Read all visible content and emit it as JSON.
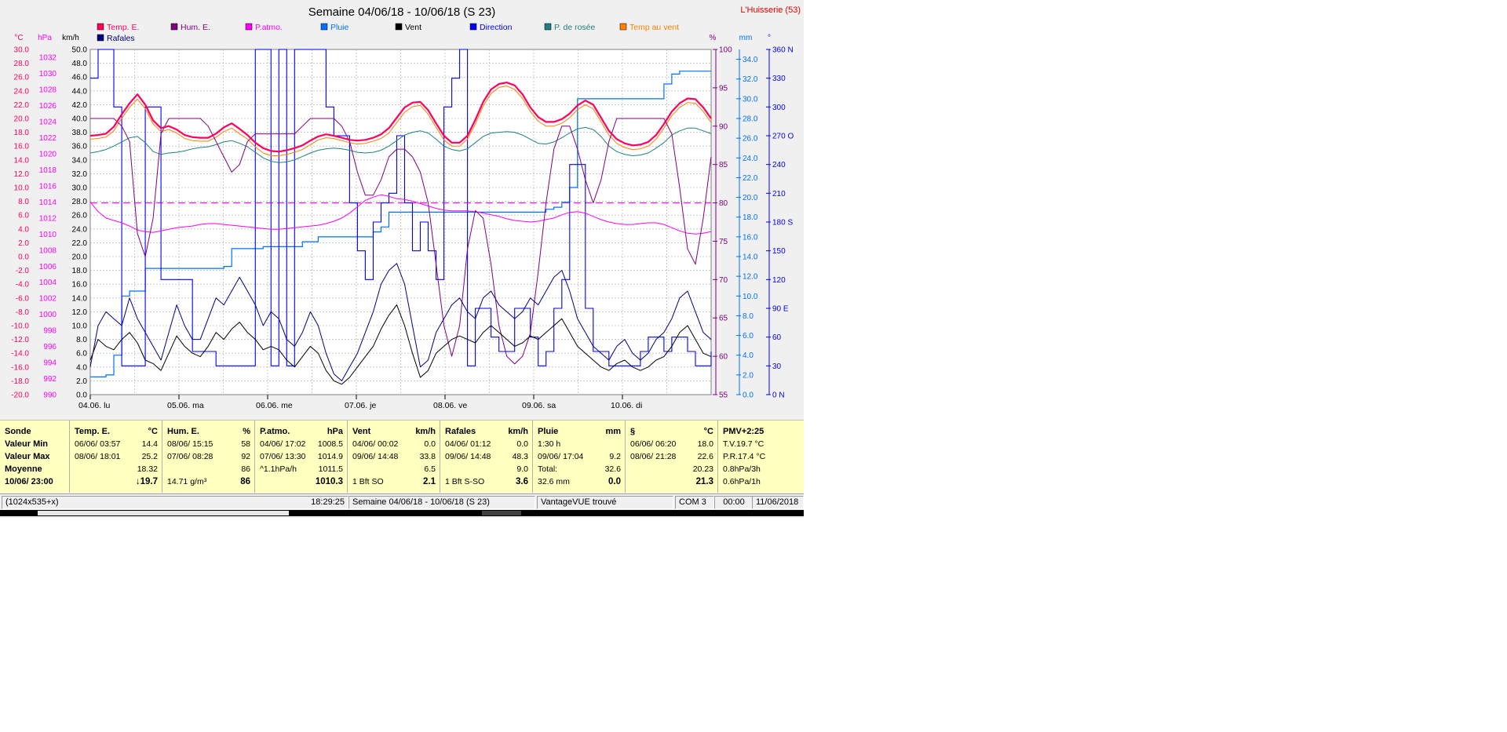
{
  "window": {
    "title": "Semaine 04/06/18 - 10/06/18 (S 23)",
    "station": "L'Huisserie (53)"
  },
  "legend": [
    {
      "label": "Temp. E.",
      "color": "#ff0060"
    },
    {
      "label": "Hum. E.",
      "color": "#800080"
    },
    {
      "label": "P.atmo.",
      "color": "#ff00ff"
    },
    {
      "label": "Pluie",
      "color": "#0070ff"
    },
    {
      "label": "Vent",
      "color": "#000000"
    },
    {
      "label": "Direction",
      "color": "#0000ff"
    },
    {
      "label": "P. de rosée",
      "color": "#208080"
    },
    {
      "label": "Temp au vent",
      "color": "#ff8000"
    },
    {
      "label": "Rafales",
      "color": "#000080"
    }
  ],
  "chart_data": {
    "type": "line",
    "title": "Semaine 04/06/18 - 10/06/18 (S 23)",
    "x_ticks": [
      "04.06.  lu",
      "05.06.  ma",
      "06.06.  me",
      "07.06.  je",
      "08.06.  ve",
      "09.06.  sa",
      "10.06.  di"
    ],
    "axes": {
      "temp": {
        "unit": "°C",
        "ticks": [
          "30.0",
          "28.0",
          "26.0",
          "24.0",
          "22.0",
          "20.0",
          "18.0",
          "16.0",
          "14.0",
          "12.0",
          "10.0",
          "8.0",
          "6.0",
          "4.0",
          "2.0",
          "0.0",
          "-2.0",
          "-4.0",
          "-6.0",
          "-8.0",
          "-10.0",
          "-12.0",
          "-14.0",
          "-16.0",
          "-18.0",
          "-20.0"
        ],
        "range": [
          -20,
          30
        ],
        "color": "#ff0060"
      },
      "pressure": {
        "unit": "hPa",
        "ticks": [
          "1032",
          "1030",
          "1028",
          "1026",
          "1024",
          "1022",
          "1020",
          "1018",
          "1016",
          "1014",
          "1012",
          "1010",
          "1008",
          "1006",
          "1004",
          "1002",
          "1000",
          "998",
          "996",
          "994",
          "992",
          "990"
        ],
        "range": [
          990,
          1033
        ],
        "color": "#ff00ff"
      },
      "wind": {
        "unit": "km/h",
        "ticks": [
          "50.0",
          "48.0",
          "46.0",
          "44.0",
          "42.0",
          "40.0",
          "38.0",
          "36.0",
          "34.0",
          "32.0",
          "30.0",
          "28.0",
          "26.0",
          "24.0",
          "22.0",
          "20.0",
          "18.0",
          "16.0",
          "14.0",
          "12.0",
          "10.0",
          "8.0",
          "6.0",
          "4.0",
          "2.0",
          "0.0"
        ],
        "range": [
          0,
          50
        ],
        "color": "#000000"
      },
      "humidity": {
        "unit": "%",
        "ticks": [
          "100",
          "95",
          "90",
          "85",
          "80",
          "75",
          "70",
          "65",
          "60",
          "55"
        ],
        "range": [
          55,
          100
        ],
        "color": "#800080"
      },
      "rain": {
        "unit": "mm",
        "ticks": [
          "34.0",
          "32.0",
          "30.0",
          "28.0",
          "26.0",
          "24.0",
          "22.0",
          "20.0",
          "18.0",
          "16.0",
          "14.0",
          "12.0",
          "10.0",
          "8.0",
          "6.0",
          "4.0",
          "2.0",
          "0.0"
        ],
        "range": [
          0,
          35
        ],
        "color": "#0070ff"
      },
      "direction": {
        "unit": "°",
        "ticks": [
          "360 N",
          "330",
          "300",
          "270 O",
          "240",
          "210",
          "180 S",
          "150",
          "120",
          "90  E",
          "60",
          "30",
          "0    N"
        ],
        "range": [
          0,
          360
        ],
        "color": "#0000ff"
      }
    },
    "grid": true,
    "reference_line": {
      "axis": "humidity",
      "value": 80
    },
    "x_days": 7,
    "series": [
      {
        "name": "Temp. E.",
        "axis": "temp",
        "color": "#ff0060",
        "values": [
          17.5,
          17.6,
          17.8,
          18.8,
          20.6,
          22.2,
          23.5,
          22.0,
          19.7,
          18.6,
          18.9,
          18.4,
          17.6,
          17.3,
          17.2,
          17.2,
          17.8,
          18.7,
          19.3,
          18.5,
          17.6,
          16.5,
          15.7,
          15.3,
          15.2,
          15.4,
          15.7,
          16.1,
          16.8,
          17.4,
          17.7,
          17.5,
          17.2,
          16.9,
          16.8,
          16.9,
          17.2,
          17.7,
          18.6,
          20.1,
          21.6,
          22.3,
          22.4,
          21.2,
          19.3,
          17.5,
          16.5,
          16.5,
          17.5,
          19.8,
          22.4,
          24.2,
          25.0,
          25.2,
          24.8,
          23.5,
          21.6,
          20.2,
          19.5,
          19.5,
          19.9,
          20.7,
          21.9,
          22.6,
          22.0,
          20.1,
          18.2,
          17.0,
          16.4,
          16.1,
          16.2,
          16.6,
          17.6,
          19.2,
          21.0,
          22.2,
          22.9,
          22.8,
          21.6,
          20.0
        ]
      },
      {
        "name": "Hum. E.",
        "axis": "humidity",
        "color": "#800080",
        "values": [
          91,
          91,
          91,
          91,
          90,
          88,
          76,
          73,
          78,
          89,
          91,
          91,
          91,
          91,
          91,
          90,
          88,
          86,
          84,
          85,
          88,
          89,
          89,
          89,
          89,
          89,
          89,
          90,
          91,
          91,
          91,
          91,
          90,
          88,
          84,
          81,
          81,
          83,
          86,
          87,
          87,
          86,
          84,
          80,
          72,
          64,
          60,
          64,
          74,
          79,
          78,
          72,
          64,
          60,
          59,
          60,
          63,
          71,
          80,
          87,
          90,
          90,
          87,
          83,
          80,
          83,
          88,
          91,
          91,
          91,
          91,
          91,
          91,
          91,
          89,
          82,
          74,
          72,
          78,
          86
        ]
      },
      {
        "name": "P.atmo.",
        "axis": "pressure",
        "color": "#ff00ff",
        "values": [
          1014.0,
          1012.8,
          1012.0,
          1011.7,
          1011.4,
          1011.0,
          1010.5,
          1010.3,
          1010.2,
          1010.4,
          1010.6,
          1010.8,
          1010.9,
          1011.0,
          1011.2,
          1011.3,
          1011.3,
          1011.2,
          1011.1,
          1011.0,
          1010.9,
          1010.8,
          1010.7,
          1010.6,
          1010.6,
          1010.7,
          1010.8,
          1010.9,
          1011.0,
          1011.1,
          1011.3,
          1011.6,
          1012.0,
          1012.6,
          1013.4,
          1014.2,
          1014.6,
          1014.9,
          1014.7,
          1014.4,
          1014.3,
          1014.1,
          1013.8,
          1013.5,
          1013.2,
          1013.0,
          1012.9,
          1012.9,
          1012.9,
          1012.8,
          1012.6,
          1012.4,
          1012.2,
          1011.9,
          1011.7,
          1011.6,
          1011.5,
          1011.6,
          1011.8,
          1012.0,
          1012.4,
          1012.7,
          1012.8,
          1012.6,
          1012.2,
          1011.8,
          1011.5,
          1011.3,
          1011.2,
          1011.2,
          1011.3,
          1011.4,
          1011.4,
          1011.2,
          1010.8,
          1010.4,
          1010.1,
          1010.0,
          1010.1,
          1010.3
        ]
      },
      {
        "name": "Pluie",
        "axis": "rain",
        "color": "#0070ff",
        "values": [
          1.8,
          1.8,
          2.0,
          4.0,
          10.0,
          10.5,
          10.5,
          12.8,
          12.8,
          12.8,
          12.8,
          12.8,
          12.8,
          12.8,
          12.8,
          12.8,
          12.8,
          13.0,
          14.8,
          14.8,
          14.8,
          14.8,
          15.0,
          15.0,
          15.0,
          15.0,
          15.0,
          15.5,
          15.5,
          16.0,
          16.0,
          16.0,
          16.0,
          16.0,
          16.0,
          16.0,
          16.5,
          17.0,
          18.5,
          18.5,
          18.5,
          18.5,
          18.5,
          18.5,
          18.5,
          18.5,
          18.5,
          18.5,
          18.5,
          18.5,
          18.5,
          18.5,
          18.5,
          18.5,
          18.5,
          18.5,
          18.5,
          18.5,
          18.8,
          19.0,
          19.5,
          21.0,
          30.0,
          30.0,
          30.0,
          30.0,
          30.0,
          30.0,
          30.0,
          30.0,
          30.0,
          30.0,
          30.0,
          31.5,
          32.5,
          32.8,
          32.8,
          32.8,
          32.8,
          32.8
        ]
      },
      {
        "name": "Vent",
        "axis": "wind",
        "color": "#000000",
        "values": [
          5.0,
          8.0,
          7.0,
          6.5,
          8.0,
          9.0,
          7.5,
          5.0,
          4.5,
          3.5,
          6.0,
          8.5,
          7.0,
          6.0,
          5.5,
          7.0,
          9.0,
          8.0,
          9.5,
          10.5,
          9.0,
          8.0,
          6.5,
          7.0,
          6.5,
          5.0,
          4.0,
          5.5,
          7.0,
          6.0,
          3.5,
          2.0,
          1.5,
          2.5,
          4.0,
          5.5,
          7.0,
          9.5,
          11.5,
          13.0,
          10.0,
          6.0,
          2.5,
          3.5,
          6.0,
          7.0,
          8.0,
          8.5,
          8.0,
          7.5,
          9.0,
          10.0,
          9.0,
          8.0,
          7.0,
          7.5,
          8.5,
          8.0,
          9.0,
          10.0,
          11.0,
          9.0,
          7.0,
          6.0,
          5.0,
          4.0,
          3.5,
          4.5,
          5.0,
          4.0,
          3.5,
          4.0,
          5.0,
          5.5,
          7.0,
          9.0,
          10.0,
          8.0,
          6.0,
          5.5
        ]
      },
      {
        "name": "Direction",
        "axis": "direction",
        "color": "#0000ff",
        "values": [
          330,
          360,
          360,
          300,
          30,
          30,
          30,
          300,
          300,
          120,
          120,
          120,
          120,
          45,
          45,
          45,
          30,
          30,
          30,
          30,
          30,
          360,
          360,
          30,
          360,
          30,
          360,
          360,
          360,
          360,
          300,
          270,
          270,
          200,
          150,
          120,
          180,
          200,
          210,
          270,
          200,
          150,
          180,
          150,
          120,
          300,
          330,
          360,
          30,
          90,
          90,
          60,
          45,
          45,
          90,
          90,
          60,
          30,
          45,
          90,
          120,
          240,
          240,
          90,
          45,
          45,
          30,
          30,
          30,
          30,
          45,
          60,
          60,
          45,
          60,
          60,
          45,
          30,
          30,
          45
        ]
      },
      {
        "name": "P. de rosée",
        "axis": "temp",
        "color": "#208080",
        "values": [
          15.0,
          15.2,
          15.5,
          16.0,
          16.6,
          17.2,
          17.4,
          16.5,
          15.2,
          14.8,
          15.0,
          15.1,
          15.3,
          15.6,
          15.8,
          15.9,
          16.2,
          16.6,
          16.8,
          16.4,
          15.9,
          15.1,
          14.3,
          13.8,
          13.6,
          13.7,
          14.0,
          14.5,
          15.0,
          15.4,
          15.6,
          15.7,
          15.6,
          15.4,
          15.1,
          15.0,
          15.1,
          15.4,
          16.0,
          16.8,
          17.6,
          18.0,
          18.2,
          17.9,
          17.0,
          16.0,
          15.5,
          15.3,
          15.6,
          16.5,
          17.4,
          17.9,
          18.0,
          18.1,
          18.0,
          17.6,
          17.0,
          16.4,
          16.3,
          16.6,
          17.2,
          17.9,
          18.5,
          18.7,
          18.4,
          17.4,
          16.0,
          15.2,
          14.8,
          14.6,
          14.7,
          15.0,
          15.7,
          16.5,
          17.6,
          18.2,
          18.6,
          18.6,
          18.2,
          17.8
        ]
      },
      {
        "name": "Temp au vent",
        "axis": "temp",
        "color": "#ff8000",
        "values": [
          17.0,
          17.1,
          17.3,
          18.2,
          20.0,
          21.6,
          22.8,
          21.4,
          19.2,
          18.1,
          18.4,
          17.9,
          17.1,
          16.8,
          16.7,
          16.7,
          17.3,
          18.1,
          18.6,
          17.8,
          17.0,
          15.9,
          15.0,
          14.6,
          14.6,
          14.8,
          15.1,
          15.5,
          16.2,
          16.9,
          17.2,
          17.1,
          16.8,
          16.5,
          16.3,
          16.4,
          16.7,
          17.1,
          17.9,
          19.4,
          20.9,
          21.7,
          21.9,
          20.6,
          18.7,
          16.9,
          16.0,
          16.0,
          17.0,
          19.2,
          21.8,
          23.6,
          24.5,
          24.7,
          24.2,
          22.9,
          21.0,
          19.6,
          18.9,
          18.9,
          19.3,
          20.1,
          21.3,
          22.0,
          21.4,
          19.5,
          17.6,
          16.4,
          15.8,
          15.5,
          15.6,
          16.0,
          17.0,
          18.6,
          20.4,
          21.6,
          22.3,
          22.2,
          21.0,
          19.4
        ]
      },
      {
        "name": "Rafales",
        "axis": "wind",
        "color": "#000080",
        "values": [
          4.0,
          10.0,
          12.0,
          11.0,
          10.0,
          14.0,
          11.0,
          9.0,
          7.0,
          5.0,
          9.0,
          13.0,
          10.0,
          8.0,
          8.0,
          11.0,
          14.0,
          13.0,
          15.0,
          17.0,
          15.0,
          13.0,
          10.0,
          12.0,
          11.0,
          8.0,
          7.0,
          9.0,
          12.0,
          10.0,
          6.0,
          3.0,
          2.0,
          4.0,
          6.0,
          9.0,
          12.0,
          16.0,
          18.0,
          19.0,
          16.0,
          10.0,
          4.0,
          5.0,
          9.0,
          11.0,
          13.0,
          14.0,
          12.0,
          11.0,
          14.0,
          15.0,
          13.0,
          12.0,
          11.0,
          12.0,
          14.0,
          13.0,
          15.0,
          17.0,
          18.0,
          15.0,
          11.0,
          9.0,
          7.0,
          6.0,
          5.0,
          7.0,
          8.0,
          6.0,
          5.0,
          6.0,
          8.0,
          9.0,
          11.0,
          14.0,
          15.0,
          12.0,
          9.0,
          8.0
        ]
      }
    ]
  },
  "panel": {
    "sonde": {
      "head": "Sonde",
      "rows": [
        "Valeur Min",
        "Valeur Max",
        "Moyenne",
        "10/06/ 23:00"
      ]
    },
    "temp": {
      "head": "Temp. E.",
      "unit": "°C",
      "min_time": "06/06/  03:57",
      "min_val": "14.4",
      "max_time": "08/06/  18:01",
      "max_val": "25.2",
      "avg": "18.32",
      "current": "↓19.7"
    },
    "hum": {
      "head": "Hum. E.",
      "unit": "%",
      "min_time": "08/06/  15:15",
      "min_val": "58",
      "max_time": "07/06/  08:28",
      "max_val": "92",
      "avg": "86",
      "cur_note": "14.71 g/m³",
      "current": "86"
    },
    "patmo": {
      "head": "P.atmo.",
      "unit": "hPa",
      "min_time": "04/06/  17:02",
      "min_val": "1008.5",
      "max_time": "07/06/  13:30",
      "max_val": "1014.9",
      "avg_note": "^1.1hPa/h",
      "avg": "1011.5",
      "current": "1010.3"
    },
    "vent": {
      "head": "Vent",
      "unit": "km/h",
      "min_time": "04/06/  00:02",
      "min_val": "0.0",
      "max_time": "09/06/  14:48",
      "max_val": "33.8",
      "avg": "6.5",
      "cur_note": "1 Bft SO",
      "current": "2.1"
    },
    "rafales": {
      "head": "Rafales",
      "unit": "km/h",
      "min_time": "04/06/  01:12",
      "min_val": "0.0",
      "max_time": "09/06/  14:48",
      "max_val": "48.3",
      "avg": "9.0",
      "cur_note": "1 Bft S-SO",
      "current": "3.6"
    },
    "pluie": {
      "head": "Pluie",
      "unit": "mm",
      "r1": "1:30 h",
      "r2_time": "09/06/  17:04",
      "r2_val": "9.2",
      "r3_label": "Total:",
      "r3_val": "32.6",
      "cur_note": "32.6 mm",
      "current": "0.0"
    },
    "s": {
      "head": "§",
      "unit": "°C",
      "min_time": "06/06/  06:20",
      "min_val": "18.0",
      "max_time": "08/06/  21:28",
      "max_val": "22.6",
      "avg": "20.23",
      "current": "21.3"
    },
    "pmv": {
      "head": "PMV+2:25",
      "r1": "T.V.19.7 °C",
      "r2": "P.R.17.4 °C",
      "r3": "0.8hPa/3h",
      "r4": "0.6hPa/1h"
    }
  },
  "status": {
    "size": "(1024x535+x)",
    "time": "18:29:25",
    "period": "Semaine 04/06/18 - 10/06/18 (S 23)",
    "device": "VantageVUE trouvé",
    "port": "COM 3",
    "clock": "00:00",
    "date": "11/06/2018"
  }
}
